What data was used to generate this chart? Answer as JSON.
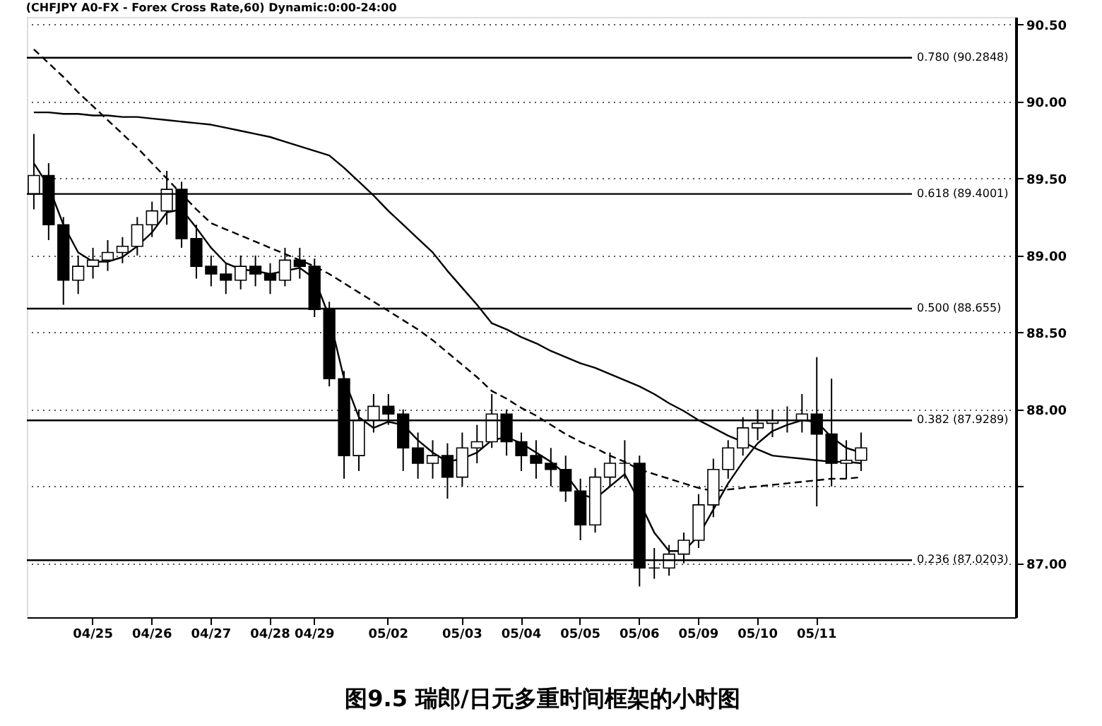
{
  "chart_data": {
    "type": "candlestick",
    "title": "(CHFJPY A0-FX - Forex Cross Rate,60) Dynamic:0:00-24:00",
    "annotations": [
      "图9.5 瑞郎/日元多重时间框架的小时图"
    ],
    "categories": [
      null,
      null,
      null,
      null,
      "04/25",
      null,
      null,
      null,
      "04/26",
      null,
      null,
      null,
      "04/27",
      null,
      null,
      null,
      "04/28",
      null,
      null,
      "04/29",
      null,
      null,
      null,
      null,
      "05/02",
      null,
      null,
      null,
      null,
      "05/03",
      null,
      null,
      null,
      "05/04",
      null,
      null,
      null,
      "05/05",
      null,
      null,
      null,
      "05/06",
      null,
      null,
      null,
      "05/09",
      null,
      null,
      null,
      "05/10",
      null,
      null,
      null,
      "05/11",
      null,
      null,
      null,
      null,
      null,
      null,
      null,
      null,
      null,
      null,
      null,
      null,
      null
    ],
    "ohlc": [
      [
        89.4,
        89.79,
        89.3,
        89.52
      ],
      [
        89.52,
        89.6,
        89.1,
        89.2
      ],
      [
        89.2,
        89.25,
        88.68,
        88.84
      ],
      [
        88.84,
        89.0,
        88.75,
        88.93
      ],
      [
        88.93,
        89.05,
        88.85,
        88.97
      ],
      [
        88.97,
        89.1,
        88.9,
        89.02
      ],
      [
        89.02,
        89.12,
        88.95,
        89.06
      ],
      [
        89.06,
        89.25,
        89.0,
        89.2
      ],
      [
        89.2,
        89.35,
        89.12,
        89.29
      ],
      [
        89.29,
        89.55,
        89.2,
        89.43
      ],
      [
        89.43,
        89.48,
        89.05,
        89.11
      ],
      [
        89.11,
        89.2,
        88.85,
        88.93
      ],
      [
        88.93,
        89.0,
        88.8,
        88.88
      ],
      [
        88.88,
        88.95,
        88.75,
        88.84
      ],
      [
        88.84,
        89.0,
        88.78,
        88.93
      ],
      [
        88.93,
        89.0,
        88.8,
        88.88
      ],
      [
        88.88,
        88.95,
        88.75,
        88.84
      ],
      [
        88.84,
        89.05,
        88.8,
        88.97
      ],
      [
        88.97,
        89.05,
        88.85,
        88.93
      ],
      [
        88.93,
        88.98,
        88.6,
        88.65
      ],
      [
        88.65,
        88.7,
        88.15,
        88.2
      ],
      [
        88.2,
        88.25,
        87.55,
        87.7
      ],
      [
        87.7,
        88.0,
        87.6,
        87.93
      ],
      [
        87.93,
        88.1,
        87.85,
        88.02
      ],
      [
        88.02,
        88.1,
        87.9,
        87.97
      ],
      [
        87.97,
        88.0,
        87.6,
        87.75
      ],
      [
        87.75,
        87.85,
        87.55,
        87.65
      ],
      [
        87.65,
        87.8,
        87.55,
        87.7
      ],
      [
        87.7,
        87.78,
        87.42,
        87.56
      ],
      [
        87.56,
        87.85,
        87.5,
        87.75
      ],
      [
        87.75,
        87.9,
        87.65,
        87.79
      ],
      [
        87.79,
        88.1,
        87.75,
        87.97
      ],
      [
        87.97,
        88.0,
        87.7,
        87.79
      ],
      [
        87.79,
        87.85,
        87.6,
        87.7
      ],
      [
        87.7,
        87.8,
        87.55,
        87.65
      ],
      [
        87.65,
        87.75,
        87.5,
        87.61
      ],
      [
        87.61,
        87.7,
        87.4,
        87.47
      ],
      [
        87.47,
        87.55,
        87.15,
        87.25
      ],
      [
        87.25,
        87.62,
        87.2,
        87.56
      ],
      [
        87.56,
        87.72,
        87.5,
        87.65
      ],
      [
        87.65,
        87.8,
        87.55,
        87.65
      ],
      [
        87.65,
        87.7,
        86.85,
        86.97
      ],
      [
        86.97,
        87.1,
        86.9,
        86.97
      ],
      [
        86.97,
        87.12,
        86.92,
        87.06
      ],
      [
        87.06,
        87.2,
        87.0,
        87.15
      ],
      [
        87.15,
        87.45,
        87.1,
        87.38
      ],
      [
        87.38,
        87.68,
        87.3,
        87.61
      ],
      [
        87.61,
        87.8,
        87.55,
        87.75
      ],
      [
        87.75,
        87.95,
        87.7,
        87.88
      ],
      [
        87.88,
        88.0,
        87.8,
        87.91
      ],
      [
        87.91,
        88.0,
        87.82,
        87.93
      ],
      [
        87.93,
        88.02,
        87.85,
        87.93
      ],
      [
        87.93,
        88.1,
        87.85,
        87.97
      ],
      [
        87.97,
        88.34,
        87.37,
        87.84
      ],
      [
        87.84,
        88.2,
        87.5,
        87.65
      ],
      [
        87.65,
        87.8,
        87.55,
        87.67
      ],
      [
        87.67,
        87.85,
        87.6,
        87.75
      ],
      null,
      null,
      null,
      null,
      null,
      null,
      null,
      null,
      null,
      null
    ],
    "series": [
      {
        "type": "line",
        "color": "#000000",
        "values": [
          89.93,
          89.93,
          89.92,
          89.92,
          89.91,
          89.91,
          89.9,
          89.9,
          89.89,
          89.88,
          89.87,
          89.86,
          89.85,
          89.83,
          89.81,
          89.79,
          89.77,
          89.74,
          89.71,
          89.68,
          89.65,
          89.57,
          89.48,
          89.39,
          89.29,
          89.2,
          89.11,
          89.02,
          88.9,
          88.79,
          88.68,
          88.56,
          88.52,
          88.47,
          88.43,
          88.38,
          88.34,
          88.3,
          88.27,
          88.23,
          88.19,
          88.15,
          88.1,
          88.04,
          87.99,
          87.93,
          87.88,
          87.83,
          87.79,
          87.74,
          87.7,
          87.69,
          87.68,
          87.67,
          87.66,
          87.66,
          87.65,
          null,
          null,
          null,
          null,
          null,
          null,
          null,
          null,
          null,
          null
        ]
      },
      {
        "type": "line",
        "color": "#000000",
        "line_style": "dashed",
        "values": [
          90.34,
          90.25,
          90.16,
          90.06,
          89.97,
          89.88,
          89.79,
          89.7,
          89.6,
          89.5,
          89.4,
          89.3,
          89.21,
          89.17,
          89.13,
          89.09,
          89.05,
          89.01,
          88.97,
          88.93,
          88.88,
          88.82,
          88.76,
          88.7,
          88.64,
          88.58,
          88.52,
          88.45,
          88.37,
          88.29,
          88.21,
          88.12,
          88.07,
          88.01,
          87.96,
          87.9,
          87.84,
          87.79,
          87.75,
          87.7,
          87.66,
          87.61,
          87.58,
          87.55,
          87.52,
          87.49,
          87.47,
          87.48,
          87.49,
          87.5,
          87.51,
          87.52,
          87.53,
          87.54,
          87.55,
          87.55,
          87.56,
          null,
          null,
          null,
          null,
          null,
          null,
          null,
          null,
          null,
          null
        ]
      },
      {
        "type": "line",
        "color": "#000000",
        "values": [
          89.6,
          89.45,
          89.2,
          89.02,
          88.96,
          88.96,
          88.99,
          89.06,
          89.15,
          89.28,
          89.3,
          89.18,
          89.05,
          88.95,
          88.91,
          88.9,
          88.88,
          88.9,
          88.92,
          88.85,
          88.6,
          88.2,
          87.95,
          87.88,
          87.92,
          87.9,
          87.8,
          87.72,
          87.66,
          87.68,
          87.72,
          87.8,
          87.82,
          87.78,
          87.72,
          87.66,
          87.58,
          87.45,
          87.42,
          87.5,
          87.58,
          87.4,
          87.2,
          87.08,
          87.08,
          87.18,
          87.35,
          87.52,
          87.66,
          87.78,
          87.86,
          87.9,
          87.93,
          87.92,
          87.82,
          87.75,
          87.72,
          null,
          null,
          null,
          null,
          null,
          null,
          null,
          null,
          null,
          null
        ]
      }
    ],
    "color": "#000000",
    "ylim": [
      86.65,
      90.55
    ],
    "yticks": [
      {
        "value": 87.0,
        "label": "87.00"
      },
      {
        "value": 87.5,
        "label": null
      },
      {
        "value": 88.0,
        "label": "88.00"
      },
      {
        "value": 88.5,
        "label": "88.50"
      },
      {
        "value": 89.0,
        "label": "89.00"
      },
      {
        "value": 89.5,
        "label": "89.50"
      },
      {
        "value": 90.0,
        "label": "90.00"
      },
      {
        "value": 90.5,
        "label": "90.50"
      }
    ],
    "grid": "y",
    "ref_lines": [
      {
        "axis": "y",
        "value": 90.2848,
        "label": "0.780 (90.2848)"
      },
      {
        "axis": "y",
        "value": 89.4001,
        "label": "0.618 (89.4001)"
      },
      {
        "axis": "y",
        "value": 88.655,
        "label": "0.500 (88.655)"
      },
      {
        "axis": "y",
        "value": 87.9289,
        "label": "0.382 (87.9289)"
      },
      {
        "axis": "y",
        "value": 87.0203,
        "label": "0.236 (87.0203)"
      }
    ]
  }
}
